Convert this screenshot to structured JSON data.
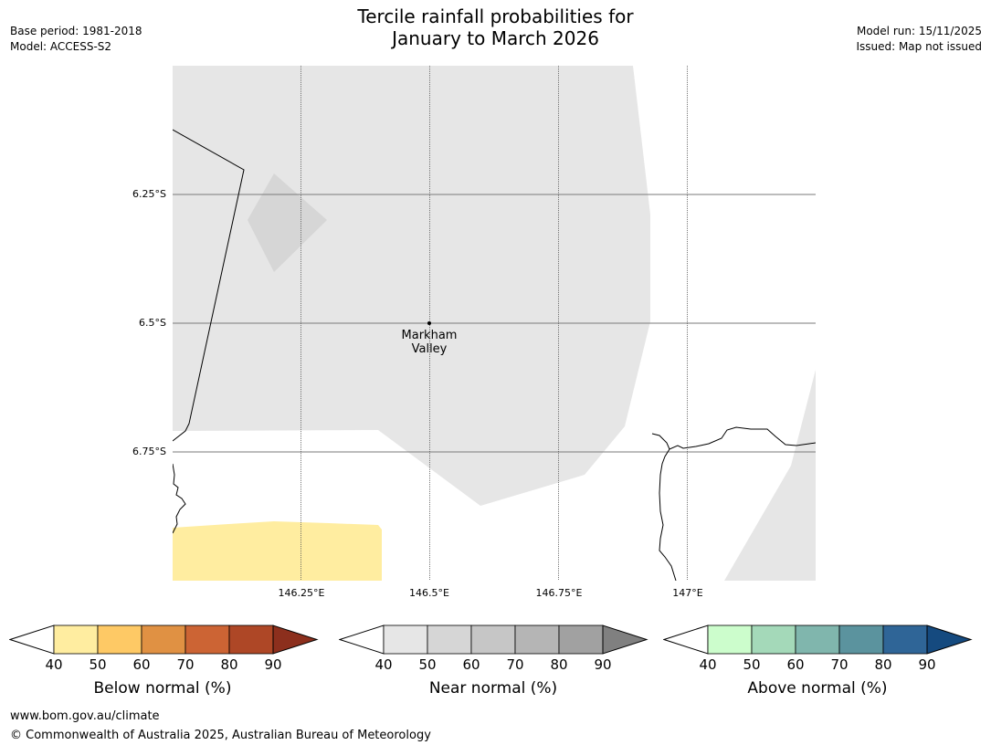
{
  "header": {
    "title_line1": "Tercile rainfall probabilities for",
    "title_line2": "January to March 2026",
    "base_period": "Base period: 1981-2018",
    "model": "Model: ACCESS-S2",
    "model_run": "Model run: 15/11/2025",
    "issued": "Issued: Map not issued"
  },
  "map": {
    "lat_labels": [
      "6.25°S",
      "6.5°S",
      "6.75°S"
    ],
    "lon_labels": [
      "146.25°E",
      "146.5°E",
      "146.75°E",
      "147°E"
    ],
    "place": {
      "name_line1": "Markham",
      "name_line2": "Valley"
    }
  },
  "legends": {
    "ticks": [
      "40",
      "50",
      "60",
      "70",
      "80",
      "90"
    ],
    "below": {
      "title": "Below normal (%)",
      "colors": [
        "#ffeda0",
        "#fec965",
        "#e09143",
        "#cc6434",
        "#ae4726",
        "#8c2f1d"
      ]
    },
    "near": {
      "title": "Near normal (%)",
      "colors": [
        "#e6e6e6",
        "#d6d6d6",
        "#c6c6c6",
        "#b5b5b5",
        "#a1a1a1",
        "#808080"
      ]
    },
    "above": {
      "title": "Above normal (%)",
      "colors": [
        "#ccfdcc",
        "#a4d9b9",
        "#80b6ad",
        "#5b939e",
        "#2f6597",
        "#154a7f"
      ]
    }
  },
  "footer": {
    "url": "www.bom.gov.au/climate",
    "copyright": "© Commonwealth of Australia 2025, Australian Bureau of Meteorology"
  }
}
